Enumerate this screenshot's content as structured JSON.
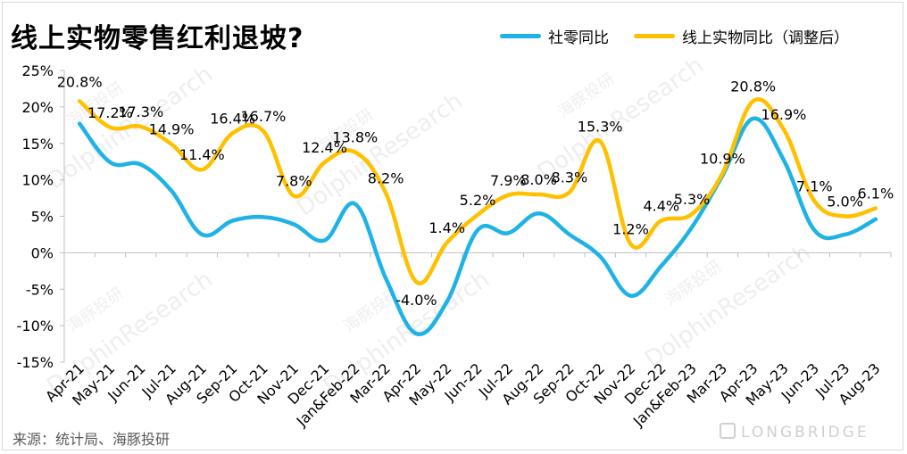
{
  "title": "线上实物零售红利退坡?",
  "source": "来源：统计局、海豚投研",
  "brand": "LONGBRIDGE",
  "watermark": "DolphinResearch",
  "watermark_cn": "海豚投研",
  "colors": {
    "series1": "#1fb3e5",
    "series2": "#ffc000",
    "axis": "#bfbfbf"
  },
  "chart_data": {
    "type": "line",
    "categories": [
      "Apr-21",
      "May-21",
      "Jun-21",
      "Jul-21",
      "Aug-21",
      "Sep-21",
      "Oct-21",
      "Nov-21",
      "Dec-21",
      "Jan&Feb-22",
      "Mar-22",
      "Apr-22",
      "May-22",
      "Jun-22",
      "Jul-22",
      "Aug-22",
      "Sep-22",
      "Oct-22",
      "Nov-22",
      "Dec-22",
      "Jan&Feb-23",
      "Mar-23",
      "Apr-23",
      "May-23",
      "Jun-23",
      "Jul-23",
      "Aug-23"
    ],
    "series": [
      {
        "name": "社零同比",
        "values": [
          17.7,
          12.4,
          12.1,
          8.5,
          2.5,
          4.4,
          4.9,
          3.9,
          1.7,
          6.7,
          -3.5,
          -11.1,
          -6.7,
          3.1,
          2.7,
          5.4,
          2.5,
          -0.5,
          -5.9,
          -1.8,
          3.5,
          10.6,
          18.4,
          12.7,
          3.1,
          2.5,
          4.6
        ]
      },
      {
        "name": "线上实物同比（调整后）",
        "values": [
          20.8,
          17.2,
          17.3,
          14.9,
          11.4,
          16.4,
          16.7,
          7.8,
          12.4,
          13.8,
          8.2,
          -4.0,
          1.4,
          5.2,
          7.9,
          8.0,
          8.3,
          15.3,
          1.2,
          4.4,
          5.3,
          10.9,
          20.8,
          16.9,
          7.1,
          5.0,
          6.1
        ],
        "labels": [
          "20.8%",
          "17.2%",
          "17.3%",
          "14.9%",
          "11.4%",
          "16.4%",
          "16.7%",
          "7.8%",
          "12.4%",
          "13.8%",
          "8.2%",
          "-4.0%",
          "1.4%",
          "5.2%",
          "7.9%",
          "8.0%",
          "8.3%",
          "15.3%",
          "1.2%",
          "4.4%",
          "5.3%",
          "10.9%",
          "20.8%",
          "16.9%",
          "7.1%",
          "5.0%",
          "6.1%"
        ]
      }
    ],
    "yticks": [
      "25%",
      "20%",
      "15%",
      "10%",
      "5%",
      "0%",
      "-5%",
      "-10%",
      "-15%"
    ],
    "ylim": [
      -15,
      25
    ],
    "legend_position": "top-right",
    "grid": false
  }
}
